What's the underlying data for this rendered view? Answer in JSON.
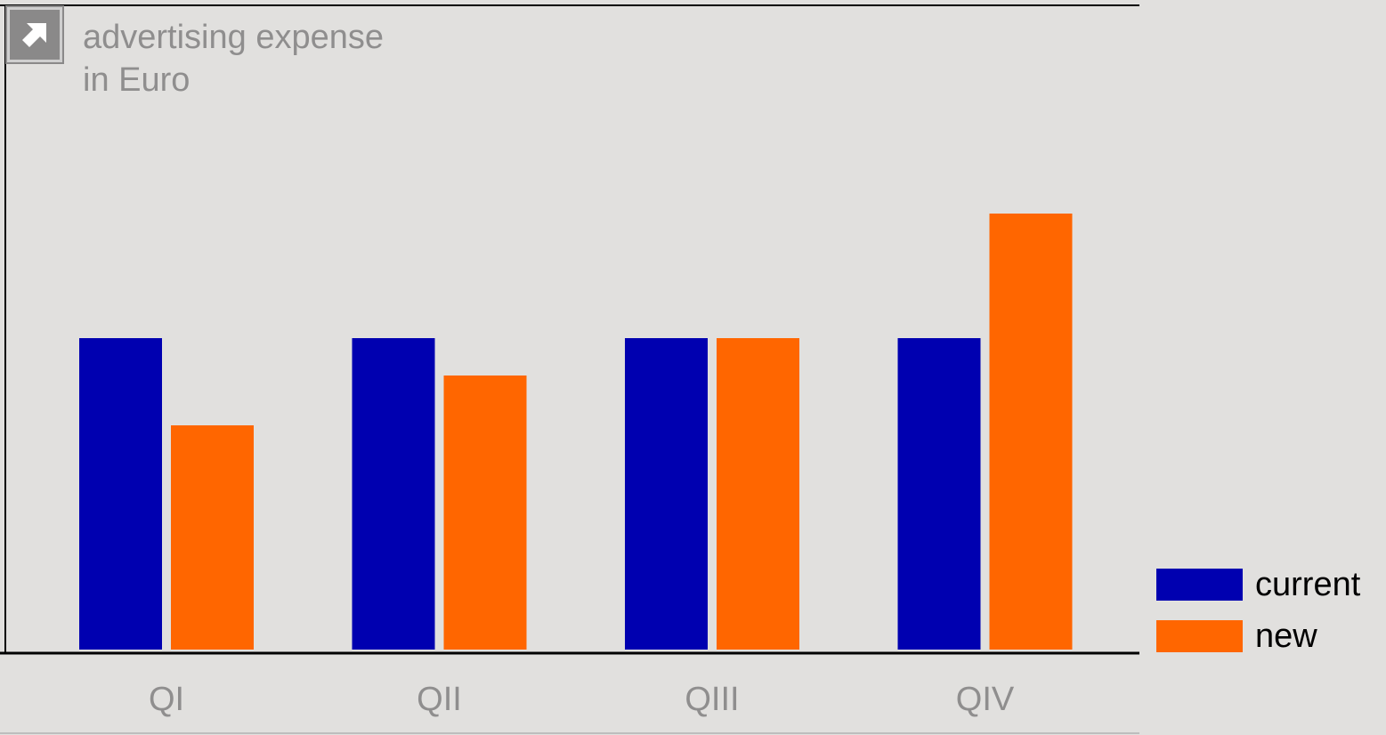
{
  "chart_data": {
    "type": "bar",
    "title": "advertising expense",
    "subtitle": "in Euro",
    "categories": [
      "QI",
      "QII",
      "QIII",
      "QIV"
    ],
    "series": [
      {
        "name": "current",
        "color": "#0000b0",
        "values": [
          100,
          100,
          100,
          100
        ]
      },
      {
        "name": "new",
        "color": "#ff6600",
        "values": [
          72,
          88,
          100,
          140
        ]
      }
    ],
    "ylim": [
      0,
      180
    ],
    "grid": false,
    "legend": "bottom-right"
  },
  "toolbar": {
    "export_icon": "arrow-up-right-icon"
  }
}
